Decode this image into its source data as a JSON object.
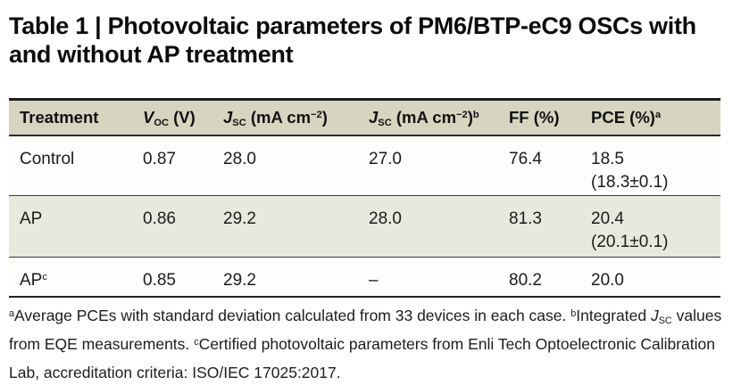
{
  "title": "Table 1 | Photovoltaic parameters of PM6/BTP-eC9 OSCs with and without AP treatment",
  "colors": {
    "header_background": "#d7d5c0",
    "shaded_row_background": "#e9e8dc",
    "light_row_background": "#fdfdfc",
    "rule_heavy": "#1d1d1d",
    "rule_light": "#3a3a3a",
    "text": "#1b1b1b"
  },
  "table": {
    "headers": {
      "treatment": "Treatment",
      "voc": {
        "symbol": "V",
        "sub": "OC",
        "unit": " (V)"
      },
      "jsc": {
        "symbol": "J",
        "sub": "SC",
        "unit_open": " (mA cm",
        "unit_exp": "−2",
        "unit_close": ")"
      },
      "jsc_eqe": {
        "symbol": "J",
        "sub": "SC",
        "unit_open": " (mA cm",
        "unit_exp": "−2",
        "unit_close": ")",
        "marker": "b"
      },
      "ff": "FF (%)",
      "pce": {
        "label": "PCE (%)",
        "marker": "a"
      }
    },
    "rows": [
      {
        "treatment": "Control",
        "treatment_marker": "",
        "voc": "0.87",
        "jsc": "28.0",
        "jsc_eqe": "27.0",
        "ff": "76.4",
        "pce": "18.5",
        "pce_detail": "(18.3±0.1)"
      },
      {
        "treatment": "AP",
        "treatment_marker": "",
        "voc": "0.86",
        "jsc": "29.2",
        "jsc_eqe": "28.0",
        "ff": "81.3",
        "pce": "20.4",
        "pce_detail": "(20.1±0.1)"
      },
      {
        "treatment": "AP",
        "treatment_marker": "c",
        "voc": "0.85",
        "jsc": "29.2",
        "jsc_eqe": "–",
        "ff": "80.2",
        "pce": "20.0",
        "pce_detail": ""
      }
    ]
  },
  "footnote": {
    "marker_a": "a",
    "text_a": "Average PCEs with standard deviation calculated from 33 devices in each case. ",
    "marker_b": "b",
    "text_b": "Integrated ",
    "j_symbol": "J",
    "j_sub": "SC",
    "text_j": " values from EQE measurements. ",
    "marker_c": "c",
    "text_c": "Certified photovoltaic parameters from Enli Tech Optoelectronic Calibration Lab, accreditation criteria: ISO/IEC 17025:2017."
  }
}
